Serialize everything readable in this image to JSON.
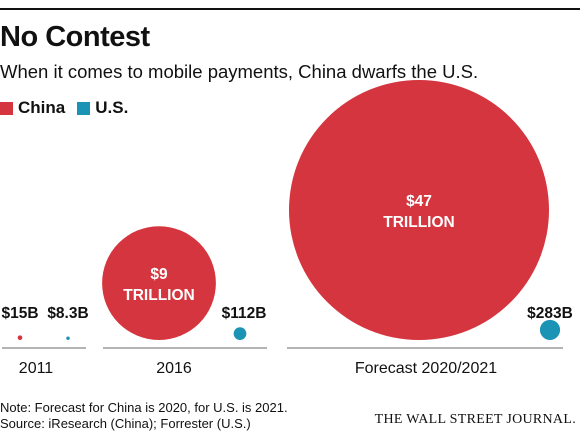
{
  "colors": {
    "china": "#d5353f",
    "us": "#1b93b5"
  },
  "chart_data": {
    "type": "bubble",
    "title": "No Contest",
    "subtitle": "When it comes to mobile payments, China dwarfs the U.S.",
    "legend": [
      {
        "name": "China",
        "color": "#d5353f"
      },
      {
        "name": "U.S.",
        "color": "#1b93b5"
      }
    ],
    "legend_position": "top-left",
    "unit": "USD",
    "categories": [
      "2011",
      "2016",
      "Forecast 2020/2021"
    ],
    "series": [
      {
        "name": "China",
        "values": [
          0.015,
          9,
          47
        ],
        "labels": [
          "$15B",
          "$9 TRILLION",
          "$47 TRILLION"
        ],
        "label_lines": [
          [
            "$15B"
          ],
          [
            "$9",
            "TRILLION"
          ],
          [
            "$47",
            "TRILLION"
          ]
        ]
      },
      {
        "name": "U.S.",
        "values": [
          0.0083,
          0.112,
          0.283
        ],
        "labels": [
          "$8.3B",
          "$112B",
          "$283B"
        ],
        "label_lines": [
          [
            "$8.3B"
          ],
          [
            "$112B"
          ],
          [
            "$283B"
          ]
        ]
      }
    ],
    "values_unit": "trillion USD",
    "grid": false
  },
  "footer": {
    "note": "Note: Forecast for China is 2020, for U.S. is 2021.",
    "source": "Source: iResearch (China); Forrester (U.S.)",
    "publisher": "THE WALL STREET JOURNAL."
  }
}
